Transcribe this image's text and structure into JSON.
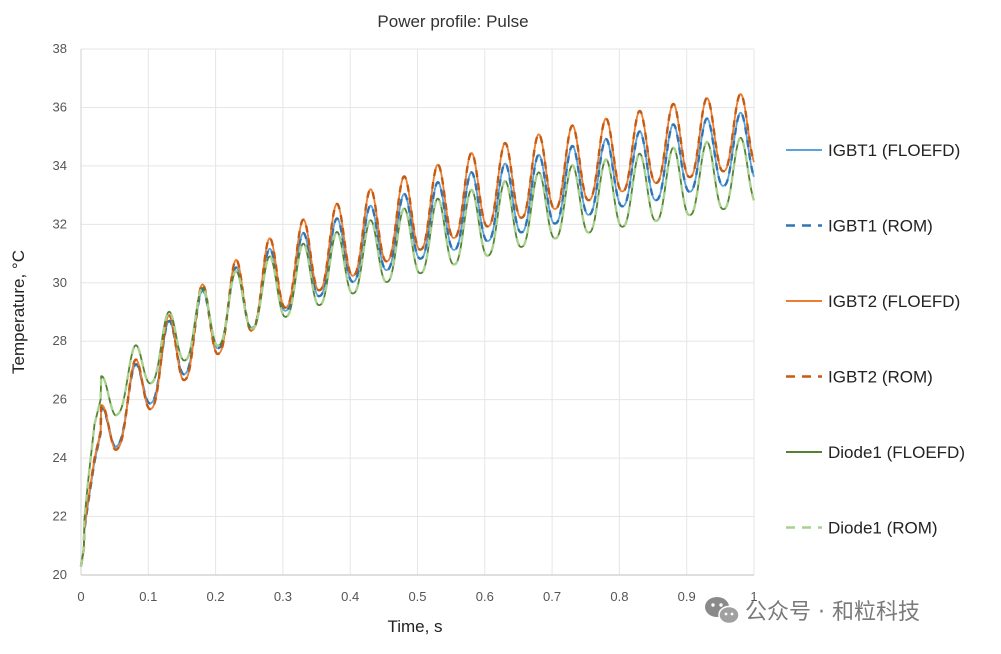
{
  "chart_data": {
    "type": "line",
    "title": "Power profile: Pulse",
    "xlabel": "Time, s",
    "ylabel": "Temperature, °C",
    "xlim": [
      0,
      1
    ],
    "ylim": [
      20,
      38
    ],
    "xticks": [
      "0",
      "0.1",
      "0.2",
      "0.3",
      "0.4",
      "0.5",
      "0.6",
      "0.7",
      "0.8",
      "0.9",
      "1"
    ],
    "yticks": [
      "20",
      "22",
      "24",
      "26",
      "28",
      "30",
      "32",
      "34",
      "36",
      "38"
    ],
    "grid": true,
    "legend_position": "right",
    "pulse_period": 0.05,
    "series": [
      {
        "name": "IGBT1 (FLOEFD)",
        "color": "#5ba3dc",
        "dash": "solid",
        "x": [
          0,
          0.01,
          0.02,
          0.03,
          0.05,
          0.1,
          0.15,
          0.2,
          0.25,
          0.3,
          0.35,
          0.4,
          0.45,
          0.5,
          0.55,
          0.6,
          0.65,
          0.7,
          0.75,
          0.8,
          0.85,
          0.9,
          0.95,
          1.0
        ],
        "peaks": [
          21.0,
          23.5,
          25.0,
          25.7,
          26.1,
          27.9,
          29.2,
          30.1,
          30.8,
          31.4,
          31.9,
          32.4,
          32.8,
          33.2,
          33.6,
          33.9,
          34.2,
          34.5,
          34.8,
          35.0,
          35.3,
          35.5,
          35.7,
          35.9
        ],
        "troughs": [
          20.3,
          21.0,
          22.5,
          24.0,
          24.3,
          25.8,
          26.8,
          27.7,
          28.4,
          29.0,
          29.5,
          30.0,
          30.4,
          30.8,
          31.1,
          31.4,
          31.7,
          32.0,
          32.3,
          32.6,
          32.8,
          33.1,
          33.3,
          33.5
        ]
      },
      {
        "name": "IGBT1 (ROM)",
        "color": "#2e75b6",
        "dash": "dashed",
        "x": [
          0,
          0.01,
          0.02,
          0.03,
          0.05,
          0.1,
          0.15,
          0.2,
          0.25,
          0.3,
          0.35,
          0.4,
          0.45,
          0.5,
          0.55,
          0.6,
          0.65,
          0.7,
          0.75,
          0.8,
          0.85,
          0.9,
          0.95,
          1.0
        ],
        "peaks": [
          21.0,
          23.5,
          25.0,
          25.7,
          26.1,
          27.9,
          29.2,
          30.1,
          30.8,
          31.4,
          31.9,
          32.4,
          32.8,
          33.2,
          33.6,
          33.9,
          34.2,
          34.5,
          34.8,
          35.0,
          35.3,
          35.5,
          35.7,
          35.9
        ],
        "troughs": [
          20.3,
          21.0,
          22.5,
          24.0,
          24.3,
          25.8,
          26.8,
          27.7,
          28.4,
          29.0,
          29.5,
          30.0,
          30.4,
          30.8,
          31.1,
          31.4,
          31.7,
          32.0,
          32.3,
          32.6,
          32.8,
          33.1,
          33.3,
          33.5
        ]
      },
      {
        "name": "IGBT2 (FLOEFD)",
        "color": "#ed7d31",
        "dash": "solid",
        "x": [
          0,
          0.01,
          0.02,
          0.03,
          0.05,
          0.1,
          0.15,
          0.2,
          0.25,
          0.3,
          0.35,
          0.4,
          0.45,
          0.5,
          0.55,
          0.6,
          0.65,
          0.7,
          0.75,
          0.8,
          0.85,
          0.9,
          0.95,
          1.0
        ],
        "peaks": [
          21.0,
          23.7,
          25.2,
          25.8,
          26.2,
          28.1,
          29.4,
          30.3,
          31.1,
          31.8,
          32.4,
          32.9,
          33.4,
          33.8,
          34.2,
          34.6,
          34.9,
          35.2,
          35.5,
          35.7,
          36.0,
          36.2,
          36.4,
          36.5
        ],
        "troughs": [
          20.3,
          21.0,
          22.5,
          24.0,
          24.2,
          25.6,
          26.6,
          27.5,
          28.3,
          29.1,
          29.7,
          30.2,
          30.7,
          31.1,
          31.5,
          31.9,
          32.2,
          32.5,
          32.8,
          33.1,
          33.4,
          33.6,
          33.8,
          34.0
        ]
      },
      {
        "name": "IGBT2 (ROM)",
        "color": "#c55a11",
        "dash": "dashed",
        "x": [
          0,
          0.01,
          0.02,
          0.03,
          0.05,
          0.1,
          0.15,
          0.2,
          0.25,
          0.3,
          0.35,
          0.4,
          0.45,
          0.5,
          0.55,
          0.6,
          0.65,
          0.7,
          0.75,
          0.8,
          0.85,
          0.9,
          0.95,
          1.0
        ],
        "peaks": [
          21.0,
          23.7,
          25.2,
          25.8,
          26.2,
          28.1,
          29.4,
          30.3,
          31.1,
          31.8,
          32.4,
          32.9,
          33.4,
          33.8,
          34.2,
          34.6,
          34.9,
          35.2,
          35.5,
          35.7,
          36.0,
          36.2,
          36.4,
          36.5
        ],
        "troughs": [
          20.3,
          21.0,
          22.5,
          24.0,
          24.2,
          25.6,
          26.6,
          27.5,
          28.3,
          29.1,
          29.7,
          30.2,
          30.7,
          31.1,
          31.5,
          31.9,
          32.2,
          32.5,
          32.8,
          33.1,
          33.4,
          33.6,
          33.8,
          34.0
        ]
      },
      {
        "name": "Diode1 (FLOEFD)",
        "color": "#548235",
        "dash": "solid",
        "x": [
          0,
          0.01,
          0.02,
          0.03,
          0.05,
          0.1,
          0.15,
          0.2,
          0.25,
          0.3,
          0.35,
          0.4,
          0.45,
          0.5,
          0.55,
          0.6,
          0.65,
          0.7,
          0.75,
          0.8,
          0.85,
          0.9,
          0.95,
          1.0
        ],
        "peaks": [
          21.0,
          24.8,
          26.5,
          26.8,
          27.0,
          28.4,
          29.4,
          30.1,
          30.6,
          31.1,
          31.5,
          31.9,
          32.3,
          32.7,
          33.0,
          33.3,
          33.6,
          33.9,
          34.1,
          34.3,
          34.5,
          34.7,
          34.9,
          35.0
        ],
        "troughs": [
          20.3,
          21.0,
          23.5,
          25.2,
          25.4,
          26.5,
          27.3,
          27.8,
          28.4,
          28.8,
          29.2,
          29.6,
          30.0,
          30.3,
          30.6,
          30.9,
          31.2,
          31.5,
          31.7,
          31.9,
          32.1,
          32.3,
          32.5,
          32.7
        ]
      },
      {
        "name": "Diode1 (ROM)",
        "color": "#a9d18e",
        "dash": "dashed",
        "x": [
          0,
          0.01,
          0.02,
          0.03,
          0.05,
          0.1,
          0.15,
          0.2,
          0.25,
          0.3,
          0.35,
          0.4,
          0.45,
          0.5,
          0.55,
          0.6,
          0.65,
          0.7,
          0.75,
          0.8,
          0.85,
          0.9,
          0.95,
          1.0
        ],
        "peaks": [
          21.0,
          24.8,
          26.5,
          26.8,
          27.0,
          28.4,
          29.4,
          30.1,
          30.6,
          31.1,
          31.5,
          31.9,
          32.3,
          32.7,
          33.0,
          33.3,
          33.6,
          33.9,
          34.1,
          34.3,
          34.5,
          34.7,
          34.9,
          35.0
        ],
        "troughs": [
          20.3,
          21.0,
          23.5,
          25.2,
          25.4,
          26.5,
          27.3,
          27.8,
          28.4,
          28.8,
          29.2,
          29.6,
          30.0,
          30.3,
          30.6,
          30.9,
          31.2,
          31.5,
          31.7,
          31.9,
          32.1,
          32.3,
          32.5,
          32.7
        ]
      }
    ]
  },
  "watermark": {
    "text": "公众号 · 和粒科技",
    "icon": "wechat-icon"
  }
}
